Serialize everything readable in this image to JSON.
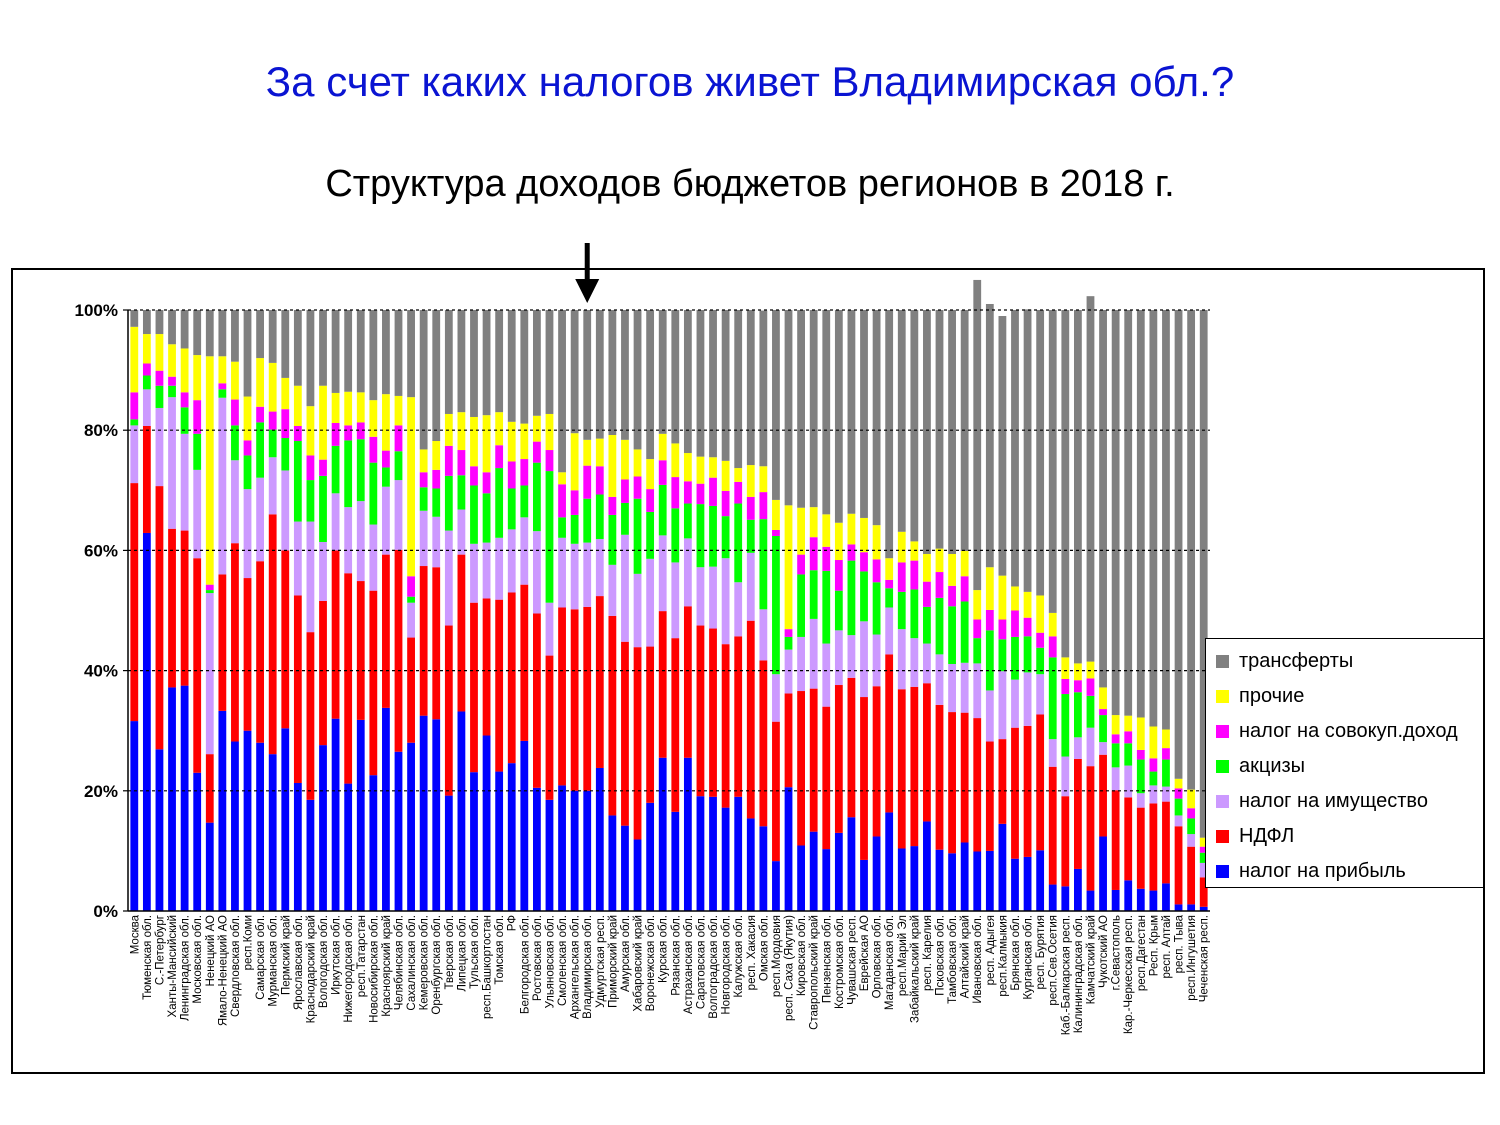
{
  "slide_title": "За счет каких налогов живет Владимирская обл.?",
  "chart_data": {
    "type": "bar",
    "stacked": true,
    "title": "Структура доходов бюджетов регионов в 2018 г.",
    "y_ticks": [
      "0%",
      "20%",
      "40%",
      "60%",
      "80%",
      "100%"
    ],
    "ylim": [
      0,
      100
    ],
    "grid": true,
    "legend_position": "right",
    "highlight_marker": "arrow-down",
    "highlight_category": "Владимирская обл.",
    "categories": [
      "Москва",
      "Тюменская обл.",
      "С.-Петербург",
      "Ханты-Мансийский",
      "Ленинградская обл.",
      "Московская обл.",
      "Ненецкий АО",
      "Ямало-Ненецкий АО",
      "Свердловская обл.",
      "респ.Коми",
      "Самарская обл.",
      "Мурманская обл.",
      "Пермский край",
      "Ярославская обл.",
      "Краснодарский край",
      "Вологодская обл.",
      "Иркутская обл.",
      "Нижегородская обл.",
      "респ.Татарстан",
      "Новосибирская обл.",
      "Красноярский край",
      "Челябинская обл.",
      "Сахалинская обл.",
      "Кемеровская обл.",
      "Оренбургская обл.",
      "Тверская обл.",
      "Липецкая обл.",
      "Тульская обл.",
      "респ.Башкортостан",
      "Томская обл.",
      "РФ",
      "Белгородская обл.",
      "Ростовская обл.",
      "Ульяновская обл.",
      "Смоленская обл.",
      "Архангельская обл.",
      "Владимирская обл.",
      "Удмуртская респ.",
      "Приморский край",
      "Амурская обл.",
      "Хабаровский край",
      "Воронежская обл.",
      "Курская обл.",
      "Рязанская обл.",
      "Астраханская обл.",
      "Саратовская обл.",
      "Волгоградская обл.",
      "Новгородская обл.",
      "Калужская обл.",
      "респ. Хакасия",
      "Омская обл.",
      "респ.Мордовия",
      "респ. Саха (Якутия)",
      "Кировская обл.",
      "Ставропольский край",
      "Пензенская обл.",
      "Костромская обл.",
      "Чувашская респ.",
      "Еврейская АО",
      "Орловская обл.",
      "Магаданская обл.",
      "респ.Марий Эл",
      "Забайкальский край",
      "респ. Карелия",
      "Псковская обл.",
      "Тамбовская обл.",
      "Алтайский край",
      "Ивановская обл.",
      "респ. Адыгея",
      "респ.Калмыкия",
      "Брянская обл.",
      "Курганская обл.",
      "респ. Бурятия",
      "респ.Сев.Осетия",
      "Каб.-Балкарская респ.",
      "Калининградская обл.",
      "Камчатский край",
      "Чукотский АО",
      "г.Севастополь",
      "Кар.-Черкесская респ.",
      "респ.Дагестан",
      "Респ. Крым",
      "респ. Алтай",
      "респ. Тыва",
      "респ.Ингушетия",
      "Чеченская респ."
    ],
    "series": [
      {
        "name": "налог на прибыль",
        "color": "#0000ff",
        "values": [
          31.6,
          62.9,
          26.9,
          37.2,
          37.5,
          23.0,
          14.7,
          33.3,
          28.2,
          30.0,
          28.0,
          26.1,
          30.4,
          21.3,
          18.5,
          27.6,
          32.0,
          21.2,
          31.8,
          22.6,
          33.8,
          26.5,
          28.0,
          32.5,
          31.9,
          19.2,
          33.2,
          23.1,
          29.2,
          23.2,
          24.6,
          28.3,
          20.5,
          18.5,
          20.9,
          20.0,
          20.0,
          23.8,
          15.9,
          14.2,
          11.9,
          18.0,
          25.5,
          16.5,
          25.5,
          19.1,
          19.0,
          17.2,
          19.0,
          15.4,
          14.1,
          8.3,
          20.6,
          10.9,
          13.2,
          10.3,
          13.0,
          15.6,
          8.5,
          12.4,
          16.4,
          10.4,
          10.8,
          14.9,
          10.2,
          9.6,
          11.4,
          9.9,
          10.0,
          14.5,
          8.7,
          9.0,
          10.1,
          4.4,
          4.1,
          7.0,
          3.4,
          12.4,
          3.5,
          5.1,
          3.7,
          3.4,
          4.6,
          1.1,
          1.1,
          0.7
        ]
      },
      {
        "name": "НДФЛ",
        "color": "#ff0000",
        "values": [
          39.6,
          17.8,
          43.8,
          26.4,
          25.8,
          35.7,
          11.4,
          22.7,
          33.0,
          25.4,
          30.2,
          39.9,
          29.6,
          31.2,
          27.9,
          24.0,
          28.0,
          35.0,
          23.1,
          30.7,
          25.5,
          33.6,
          17.5,
          24.9,
          25.3,
          28.3,
          26.1,
          28.2,
          22.8,
          28.6,
          28.4,
          26.0,
          29.0,
          24.0,
          29.6,
          30.2,
          30.6,
          28.6,
          33.2,
          30.6,
          32.0,
          26.0,
          24.4,
          28.9,
          25.2,
          28.4,
          28.0,
          27.2,
          26.7,
          32.9,
          27.6,
          23.2,
          15.6,
          25.7,
          23.8,
          23.7,
          24.6,
          23.2,
          27.1,
          25.0,
          26.3,
          26.5,
          26.5,
          23.0,
          24.1,
          23.5,
          21.6,
          22.2,
          18.2,
          14.1,
          21.8,
          21.8,
          22.6,
          19.6,
          15.0,
          18.3,
          20.7,
          13.6,
          16.6,
          13.8,
          13.5,
          14.5,
          13.6,
          13.0,
          9.6,
          4.9
        ]
      },
      {
        "name": "налог на имущество",
        "color": "#cc99ff",
        "values": [
          9.6,
          6.1,
          13.0,
          21.9,
          16.1,
          14.7,
          26.8,
          29.4,
          13.8,
          14.8,
          13.9,
          9.5,
          13.3,
          12.3,
          18.4,
          9.8,
          9.5,
          11.0,
          13.3,
          11.0,
          11.3,
          11.6,
          5.8,
          9.2,
          8.4,
          15.8,
          7.5,
          9.8,
          9.3,
          10.3,
          10.5,
          11.2,
          13.7,
          8.8,
          11.6,
          10.9,
          10.7,
          9.5,
          8.5,
          17.8,
          12.2,
          14.6,
          12.6,
          12.6,
          11.3,
          9.7,
          10.3,
          14.3,
          9.0,
          11.3,
          8.5,
          7.9,
          7.3,
          9.0,
          11.6,
          10.5,
          9.1,
          7.1,
          12.6,
          8.6,
          7.8,
          10.0,
          8.1,
          6.6,
          8.4,
          8.0,
          8.3,
          9.1,
          8.5,
          11.3,
          8.0,
          8.9,
          6.7,
          4.6,
          6.6,
          3.6,
          6.4,
          2.1,
          3.8,
          5.3,
          2.4,
          3.0,
          2.5,
          1.8,
          2.1,
          2.4
        ]
      },
      {
        "name": "акцизы",
        "color": "#00ff00",
        "values": [
          1.0,
          2.3,
          3.7,
          1.9,
          4.4,
          6.0,
          0.5,
          1.4,
          5.8,
          5.6,
          9.2,
          4.6,
          5.4,
          13.4,
          6.9,
          11.0,
          7.9,
          11.1,
          10.3,
          10.3,
          3.2,
          4.8,
          1.0,
          3.9,
          4.7,
          9.1,
          5.7,
          9.7,
          8.2,
          11.6,
          6.8,
          5.3,
          11.4,
          21.9,
          3.4,
          4.8,
          7.3,
          7.4,
          8.3,
          5.3,
          12.5,
          7.8,
          8.4,
          9.0,
          5.8,
          10.5,
          10.1,
          7.0,
          13.1,
          5.5,
          15.0,
          23.0,
          2.1,
          10.4,
          8.1,
          12.1,
          6.6,
          12.4,
          8.3,
          8.7,
          3.2,
          6.2,
          8.1,
          6.1,
          9.4,
          9.6,
          10.2,
          4.2,
          10.0,
          5.3,
          7.1,
          6.0,
          4.4,
          13.6,
          10.4,
          7.5,
          5.3,
          4.5,
          4.0,
          3.7,
          5.6,
          2.3,
          4.5,
          2.8,
          2.6,
          1.7
        ]
      },
      {
        "name": "налог на совокуп.доход",
        "color": "#ff00ff",
        "values": [
          4.5,
          2.0,
          2.5,
          1.5,
          2.5,
          5.6,
          0.9,
          1.0,
          4.3,
          2.5,
          2.6,
          3.0,
          4.8,
          2.5,
          4.1,
          2.7,
          3.8,
          2.5,
          2.8,
          4.3,
          2.8,
          4.3,
          3.4,
          2.5,
          3.1,
          5.0,
          4.2,
          3.2,
          3.5,
          3.8,
          4.5,
          4.4,
          3.5,
          3.5,
          5.5,
          4.1,
          5.5,
          4.7,
          3.0,
          3.9,
          3.7,
          3.8,
          4.1,
          5.2,
          3.7,
          3.4,
          4.7,
          4.2,
          3.6,
          3.8,
          4.5,
          1.0,
          1.3,
          3.3,
          5.5,
          4.0,
          5.1,
          2.7,
          3.2,
          3.8,
          1.4,
          4.9,
          4.8,
          4.2,
          4.3,
          3.4,
          4.2,
          3.1,
          3.4,
          3.3,
          4.4,
          3.1,
          2.5,
          3.5,
          2.5,
          2.0,
          2.9,
          1.0,
          1.5,
          2.0,
          1.6,
          2.2,
          1.9,
          1.7,
          1.7,
          1.0
        ]
      },
      {
        "name": "прочие",
        "color": "#ffff00",
        "values": [
          10.9,
          4.9,
          6.1,
          5.4,
          7.3,
          7.5,
          38.0,
          4.5,
          6.3,
          7.3,
          8.1,
          8.1,
          5.2,
          6.7,
          8.2,
          12.3,
          5.0,
          5.6,
          5.0,
          6.1,
          9.4,
          4.9,
          29.8,
          3.8,
          4.8,
          5.3,
          6.3,
          8.2,
          9.5,
          5.5,
          6.6,
          5.9,
          4.3,
          6.0,
          2.0,
          9.5,
          4.3,
          4.6,
          10.3,
          6.6,
          4.5,
          5.0,
          4.4,
          5.6,
          4.7,
          4.5,
          3.4,
          5.0,
          2.3,
          5.3,
          4.3,
          5.0,
          20.6,
          7.8,
          5.0,
          5.4,
          6.2,
          5.1,
          5.7,
          5.7,
          3.6,
          5.1,
          3.2,
          4.6,
          3.9,
          5.3,
          4.2,
          4.9,
          7.1,
          7.3,
          4.0,
          4.3,
          6.2,
          3.9,
          3.6,
          2.8,
          2.8,
          3.6,
          3.2,
          2.6,
          5.4,
          5.3,
          3.1,
          1.6,
          3.1,
          1.5
        ]
      },
      {
        "name": "трансферты",
        "color": "#808080",
        "values": [
          2.8,
          4.0,
          4.0,
          5.7,
          6.4,
          7.5,
          7.7,
          7.7,
          8.6,
          14.4,
          8.0,
          8.8,
          11.3,
          12.6,
          16.0,
          12.6,
          13.8,
          13.6,
          13.7,
          15.0,
          14.0,
          14.3,
          14.5,
          23.2,
          21.8,
          17.3,
          17.0,
          17.8,
          17.5,
          17.0,
          18.6,
          18.9,
          17.6,
          17.3,
          27.0,
          20.5,
          21.6,
          21.4,
          20.8,
          21.6,
          23.2,
          24.8,
          20.6,
          22.2,
          23.8,
          24.4,
          24.5,
          25.1,
          26.3,
          25.8,
          25.9,
          31.6,
          32.5,
          32.9,
          32.8,
          34.0,
          35.4,
          33.9,
          34.6,
          35.8,
          41.3,
          36.9,
          38.5,
          40.6,
          39.7,
          40.6,
          40.1,
          51.6,
          43.8,
          43.2,
          46.0,
          47.0,
          47.5,
          50.4,
          57.8,
          58.8,
          60.8,
          62.8,
          67.4,
          67.5,
          67.8,
          69.3,
          69.8,
          78.0,
          79.8,
          87.8
        ]
      }
    ]
  },
  "legend": {
    "items": [
      {
        "label": "трансферты",
        "color": "#808080"
      },
      {
        "label": "прочие",
        "color": "#ffff00"
      },
      {
        "label": "налог на совокуп.доход",
        "color": "#ff00ff"
      },
      {
        "label": "акцизы",
        "color": "#00ff00"
      },
      {
        "label": "налог на имущество",
        "color": "#cc99ff"
      },
      {
        "label": "НДФЛ",
        "color": "#ff0000"
      },
      {
        "label": "налог на прибыль",
        "color": "#0000ff"
      }
    ]
  }
}
